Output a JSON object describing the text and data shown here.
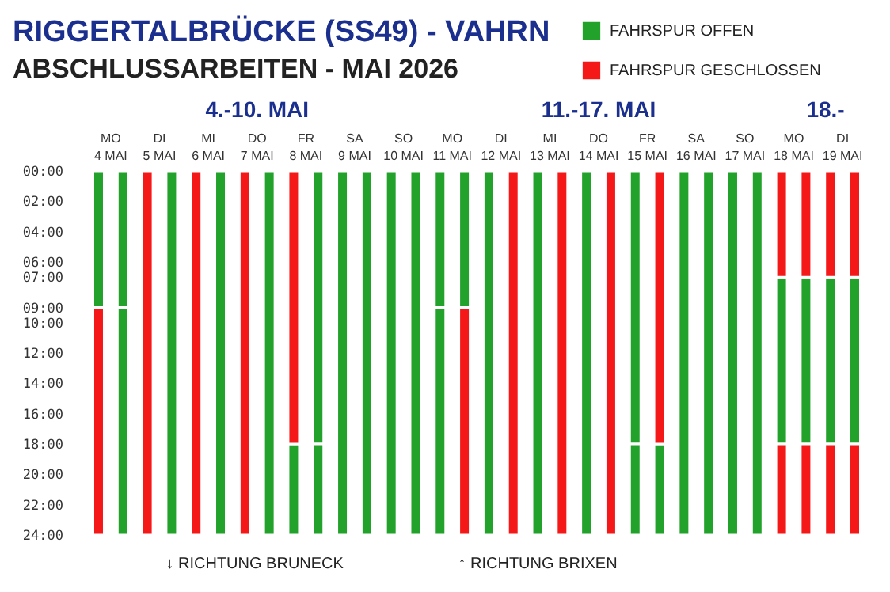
{
  "chart_data": {
    "type": "bar",
    "title": "RIGGERTALBRÜCKE (SS49) - VAHRN",
    "subtitle": "ABSCHLUSSARBEITEN - MAI 2026",
    "categories": [
      "MO 4 MAI",
      null,
      "DI 5 MAI",
      null,
      "MI 6 MAI",
      null,
      "DO 7 MAI",
      null,
      "FR 8 MAI",
      null,
      "SA 9 MAI",
      null,
      "SO 10 MAI",
      null,
      "MO 11 MAI",
      null,
      "DI 12 MAI",
      null,
      "MI 13 MAI",
      null,
      "DO 14 MAI",
      null,
      "FR 15 MAI",
      null,
      "SA 16 MAI",
      null,
      "SO 17 MAI",
      null,
      "MO 18 MAI",
      null,
      "DI 19 MAI",
      null
    ],
    "series": [
      {
        "name": "FAHRSPUR OFFEN",
        "color": "#22a22b",
        "values": [
          9,
          9,
          null,
          24,
          null,
          24,
          null,
          24,
          6,
          18,
          24,
          24,
          24,
          24,
          9,
          9,
          24,
          null,
          24,
          null,
          24,
          null,
          18,
          6,
          24,
          24,
          24,
          24,
          11,
          11,
          11,
          11
        ],
        "base": [
          0,
          0,
          null,
          0,
          null,
          0,
          null,
          0,
          18,
          0,
          0,
          0,
          0,
          0,
          0,
          0,
          0,
          null,
          0,
          null,
          0,
          null,
          0,
          18,
          0,
          0,
          0,
          0,
          7,
          7,
          7,
          7
        ]
      },
      {
        "color": "#22a22b",
        "values": [
          null,
          15,
          null,
          null,
          null,
          null,
          null,
          null,
          null,
          6,
          null,
          null,
          null,
          null,
          15,
          null,
          null,
          null,
          null,
          null,
          null,
          null,
          6,
          null,
          null,
          null,
          null,
          null,
          null,
          null,
          null,
          null
        ],
        "base": [
          null,
          9,
          null,
          null,
          null,
          null,
          null,
          null,
          null,
          18,
          null,
          null,
          null,
          null,
          9,
          null,
          null,
          null,
          null,
          null,
          null,
          null,
          18,
          null,
          null,
          null,
          null,
          null,
          null,
          null,
          null,
          null
        ]
      },
      {
        "name": "FAHRSPUR GESCHLOSSEN",
        "color": "#f51818",
        "values": [
          15,
          null,
          24,
          null,
          24,
          null,
          24,
          null,
          18,
          null,
          null,
          null,
          null,
          null,
          null,
          15,
          null,
          24,
          null,
          24,
          null,
          24,
          null,
          18,
          null,
          null,
          null,
          null,
          7,
          7,
          7,
          7
        ],
        "base": [
          9,
          null,
          0,
          null,
          0,
          null,
          0,
          null,
          0,
          null,
          null,
          null,
          null,
          null,
          null,
          9,
          null,
          0,
          null,
          0,
          null,
          0,
          null,
          0,
          null,
          null,
          null,
          null,
          0,
          0,
          0,
          0
        ]
      },
      {
        "color": "#f51818",
        "values": [
          null,
          null,
          null,
          null,
          null,
          null,
          null,
          null,
          null,
          null,
          null,
          null,
          null,
          null,
          null,
          null,
          null,
          null,
          null,
          null,
          null,
          null,
          null,
          null,
          null,
          null,
          null,
          null,
          6,
          6,
          6,
          6
        ],
        "base": [
          null,
          null,
          null,
          null,
          null,
          null,
          null,
          null,
          null,
          null,
          null,
          null,
          null,
          null,
          null,
          null,
          null,
          null,
          null,
          null,
          null,
          null,
          null,
          null,
          null,
          null,
          null,
          null,
          18,
          18,
          18,
          18
        ]
      }
    ],
    "ylim": [
      24,
      0
    ],
    "yticks": [
      {
        "value": 0,
        "label": "00:00"
      },
      {
        "value": 2,
        "label": "02:00"
      },
      {
        "value": 4,
        "label": "04:00"
      },
      {
        "value": 6,
        "label": "06:00"
      },
      {
        "value": 7,
        "label": "07:00"
      },
      {
        "value": 9,
        "label": "09:00"
      },
      {
        "value": 10,
        "label": "10:00"
      },
      {
        "value": 12,
        "label": "12:00"
      },
      {
        "value": 14,
        "label": "14:00"
      },
      {
        "value": 16,
        "label": "16:00"
      },
      {
        "value": 18,
        "label": "18:00"
      },
      {
        "value": 20,
        "label": "20:00"
      },
      {
        "value": 22,
        "label": "22:00"
      },
      {
        "value": 24,
        "label": "24:00"
      }
    ],
    "legend": "top right",
    "annotations": [
      "4.-10. MAI",
      "11.-17. MAI",
      "18.-",
      "↓ RICHTUNG BRUNECK",
      "↑ RICHTUNG BRIXEN"
    ]
  }
}
